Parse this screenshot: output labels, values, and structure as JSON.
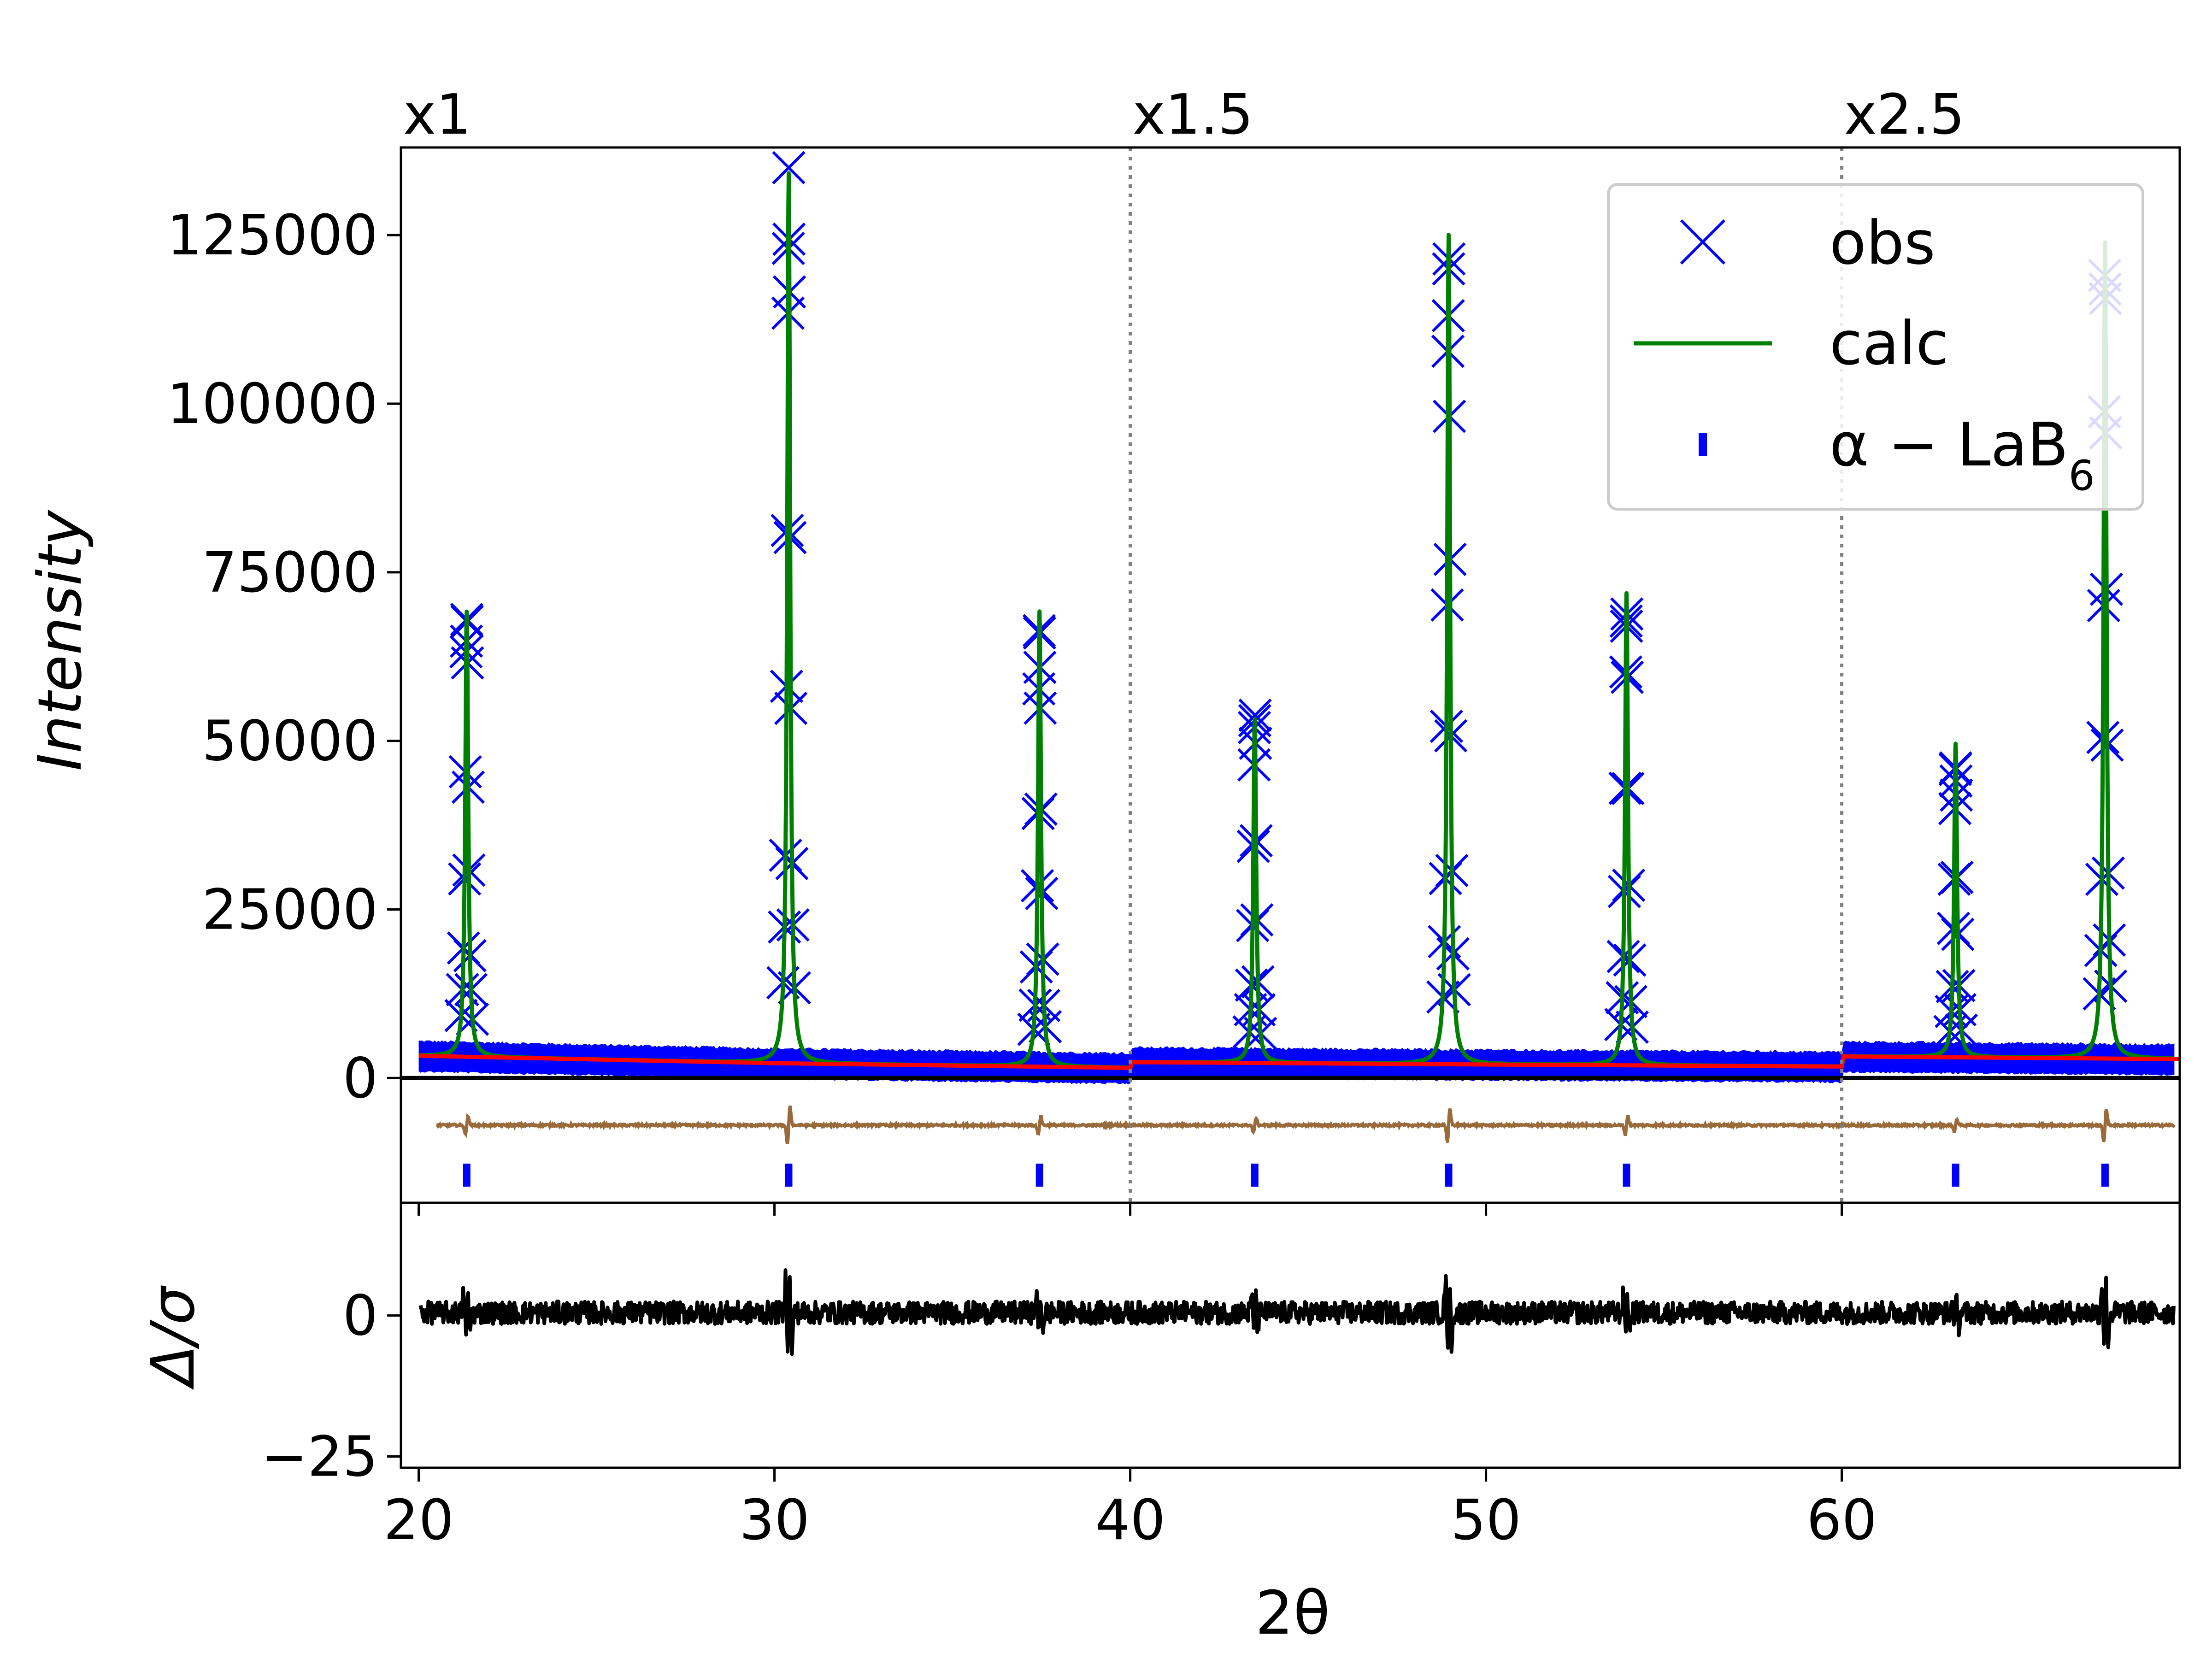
{
  "chart_data": {
    "type": "line",
    "xlabel": "2θ",
    "ylabel_top": "Intensity",
    "ylabel_bottom": "Δ/σ",
    "xlim": [
      19.5,
      69.5
    ],
    "ylim_top": [
      -18500,
      138000
    ],
    "ylim_bottom": [
      -27,
      20
    ],
    "x_ticks": [
      20,
      30,
      40,
      50,
      60
    ],
    "y_ticks_top": [
      0,
      25000,
      50000,
      75000,
      100000,
      125000
    ],
    "y_ticks_bottom": [
      0,
      -25
    ],
    "scale_regions": [
      {
        "label": "x1",
        "start": 19.5,
        "end": 40.0,
        "factor": 1
      },
      {
        "label": "x1.5",
        "start": 40.0,
        "end": 60.0,
        "factor": 1.5
      },
      {
        "label": "x2.5",
        "start": 60.0,
        "end": 69.5,
        "factor": 2.5
      }
    ],
    "region_dividers": [
      40.0,
      60.0
    ],
    "legend": {
      "position": "top-right",
      "entries": [
        {
          "label": "obs",
          "marker": "x",
          "color": "#0000ff"
        },
        {
          "label": "calc",
          "marker": "line",
          "color": "#008000"
        },
        {
          "label": "α − LaB",
          "subscript": "6",
          "marker": "tick",
          "color": "#0000ff"
        }
      ]
    },
    "background": {
      "color": "#ff0000",
      "points": [
        [
          20,
          3300
        ],
        [
          30,
          2200
        ],
        [
          40,
          1500
        ],
        [
          40.05,
          2350
        ],
        [
          50,
          2000
        ],
        [
          60,
          1700
        ],
        [
          60.05,
          3200
        ],
        [
          69.5,
          2800
        ]
      ]
    },
    "peaks": [
      {
        "pos": 21.35,
        "obs_max": 68000,
        "calc_max": 66000
      },
      {
        "pos": 30.4,
        "obs_max": 135000,
        "calc_max": 132000
      },
      {
        "pos": 37.45,
        "obs_max": 66000,
        "calc_max": 67500
      },
      {
        "pos": 43.5,
        "obs_max": 53000,
        "calc_max": 51000
      },
      {
        "pos": 48.95,
        "obs_max": 120000,
        "calc_max": 123000
      },
      {
        "pos": 53.95,
        "obs_max": 67000,
        "calc_max": 70000
      },
      {
        "pos": 63.2,
        "obs_max": 46000,
        "calc_max": 46500
      },
      {
        "pos": 67.4,
        "obs_max": 117000,
        "calc_max": 121000
      }
    ],
    "reflection_ticks": [
      21.35,
      30.4,
      37.45,
      43.5,
      48.95,
      53.95,
      63.2,
      67.4
    ],
    "difference_offset": -7000,
    "colors": {
      "obs": "#0000ff",
      "calc": "#008000",
      "background": "#ff0000",
      "difference": "#9a6b3a",
      "reflections": "#0000ff",
      "residual": "#000000",
      "divider": "#808080"
    }
  }
}
